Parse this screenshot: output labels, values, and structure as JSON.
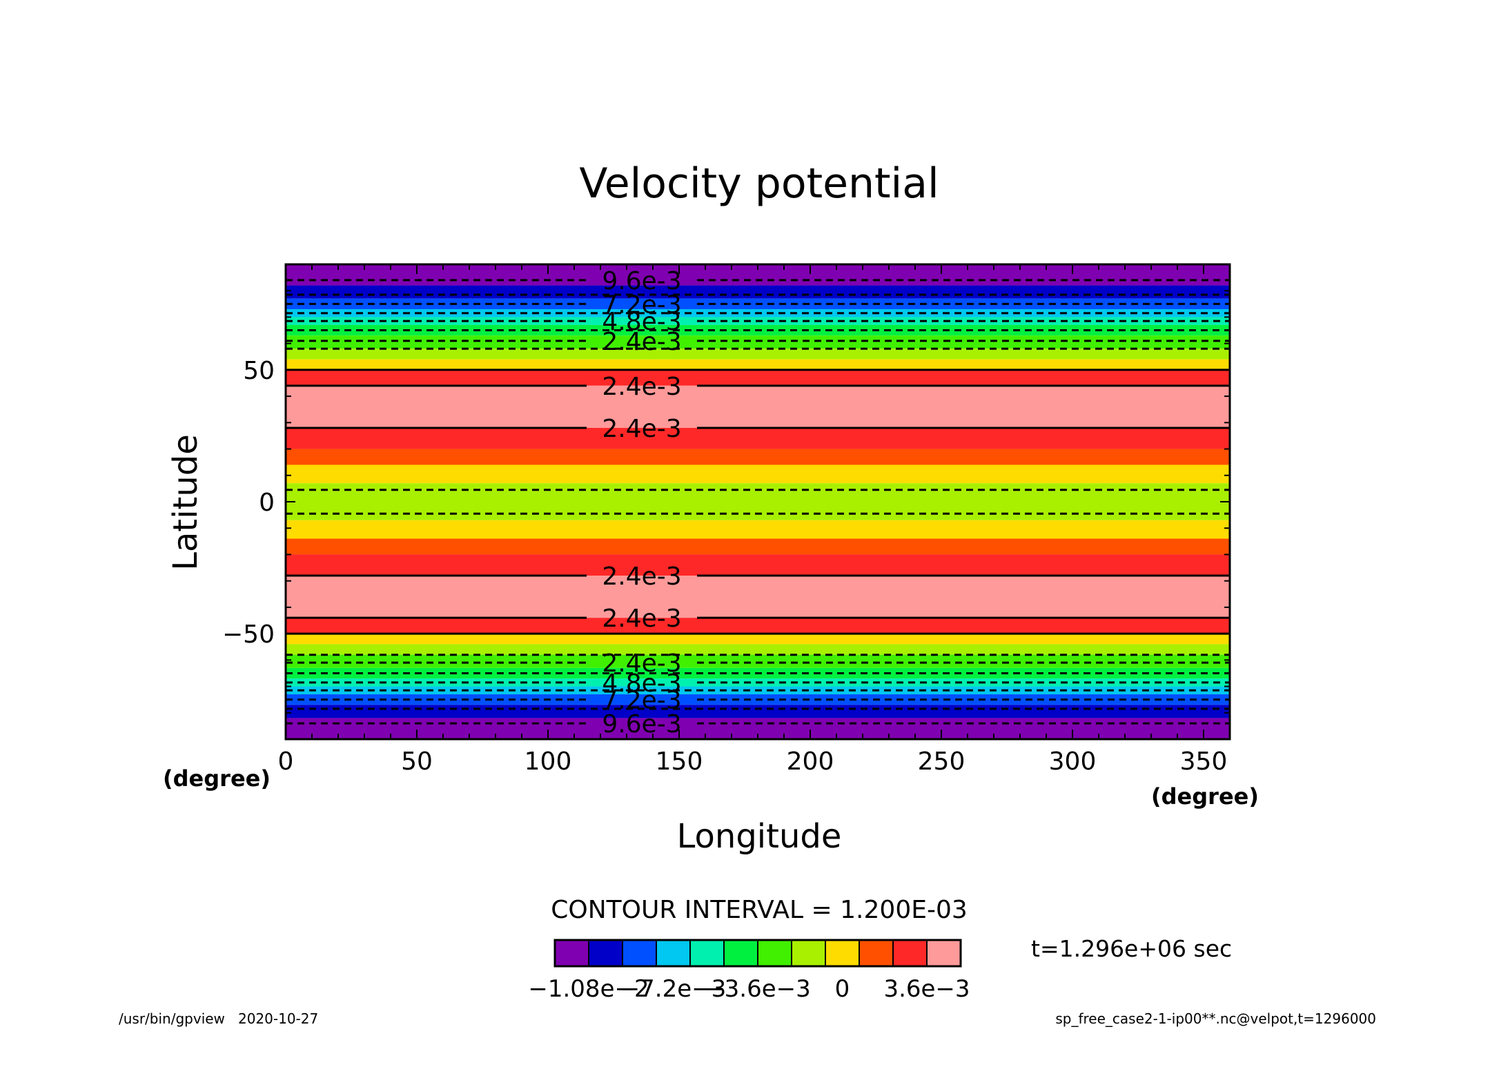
{
  "chart_data": {
    "type": "heatmap",
    "title": "Velocity potential",
    "xlabel": "Longitude",
    "ylabel": "Latitude",
    "xunit": "(degree)",
    "yunit": "(degree)",
    "xlim": [
      0,
      360
    ],
    "ylim": [
      -90,
      90
    ],
    "xticks": [
      0,
      50,
      100,
      150,
      200,
      250,
      300,
      350
    ],
    "yticks": [
      -50,
      0,
      50
    ],
    "contour_interval_text": "CONTOUR INTERVAL = 1.200E-03",
    "time_text": "t=1.296e+06 sec",
    "footer_left": "/usr/bin/gpview   2020-10-27",
    "footer_right": "sp_free_case2-1-ip00**.nc@velpot,t=1296000",
    "colorbar": {
      "colors": [
        "#7f00b0",
        "#0000c8",
        "#0050ff",
        "#00c8f0",
        "#00f0b0",
        "#00f040",
        "#40f000",
        "#a8f000",
        "#ffdc00",
        "#ff5000",
        "#ff2828",
        "#ff9a9a"
      ],
      "tick_labels": [
        "-1.08e-2",
        "-7.2e-3",
        "-3.6e-3",
        "0",
        "3.6e-3"
      ],
      "tick_values": [
        -0.0108,
        -0.0072,
        -0.0036,
        0,
        0.0036
      ]
    },
    "bands": [
      {
        "lat": [
          82,
          90
        ],
        "color": "#7f00b0"
      },
      {
        "lat": [
          77,
          82
        ],
        "color": "#0000c8"
      },
      {
        "lat": [
          73,
          77
        ],
        "color": "#0050ff"
      },
      {
        "lat": [
          70,
          73
        ],
        "color": "#00c8f0"
      },
      {
        "lat": [
          67,
          70
        ],
        "color": "#00f0b0"
      },
      {
        "lat": [
          63,
          67
        ],
        "color": "#00f040"
      },
      {
        "lat": [
          58,
          63
        ],
        "color": "#40f000"
      },
      {
        "lat": [
          54,
          58
        ],
        "color": "#a8f000"
      },
      {
        "lat": [
          50,
          54
        ],
        "color": "#ffdc00"
      },
      {
        "lat": [
          44,
          50
        ],
        "color": "#ff2828"
      },
      {
        "lat": [
          28,
          44
        ],
        "color": "#ff9a9a"
      },
      {
        "lat": [
          20,
          28
        ],
        "color": "#ff2828"
      },
      {
        "lat": [
          14,
          20
        ],
        "color": "#ff5000"
      },
      {
        "lat": [
          7,
          14
        ],
        "color": "#ffdc00"
      },
      {
        "lat": [
          -7,
          7
        ],
        "color": "#a8f000"
      },
      {
        "lat": [
          -14,
          -7
        ],
        "color": "#ffdc00"
      },
      {
        "lat": [
          -20,
          -14
        ],
        "color": "#ff5000"
      },
      {
        "lat": [
          -28,
          -20
        ],
        "color": "#ff2828"
      },
      {
        "lat": [
          -44,
          -28
        ],
        "color": "#ff9a9a"
      },
      {
        "lat": [
          -50,
          -44
        ],
        "color": "#ff2828"
      },
      {
        "lat": [
          -54,
          -50
        ],
        "color": "#ffdc00"
      },
      {
        "lat": [
          -58,
          -54
        ],
        "color": "#a8f000"
      },
      {
        "lat": [
          -63,
          -58
        ],
        "color": "#40f000"
      },
      {
        "lat": [
          -67,
          -63
        ],
        "color": "#00f040"
      },
      {
        "lat": [
          -70,
          -67
        ],
        "color": "#00f0b0"
      },
      {
        "lat": [
          -73,
          -70
        ],
        "color": "#00c8f0"
      },
      {
        "lat": [
          -77,
          -73
        ],
        "color": "#0050ff"
      },
      {
        "lat": [
          -82,
          -77
        ],
        "color": "#0000c8"
      },
      {
        "lat": [
          -90,
          -82
        ],
        "color": "#7f00b0"
      }
    ],
    "contours": [
      {
        "lat": 84,
        "dashed": true,
        "label": "9.6e-3"
      },
      {
        "lat": 78.5,
        "dashed": true,
        "label": ""
      },
      {
        "lat": 75,
        "dashed": true,
        "label": "7.2e-3"
      },
      {
        "lat": 71.5,
        "dashed": true,
        "label": ""
      },
      {
        "lat": 68.5,
        "dashed": true,
        "label": "4.8e-3"
      },
      {
        "lat": 65,
        "dashed": true,
        "label": ""
      },
      {
        "lat": 61,
        "dashed": true,
        "label": "2.4e-3"
      },
      {
        "lat": 58,
        "dashed": true,
        "label": ""
      },
      {
        "lat": 50,
        "dashed": false,
        "label": ""
      },
      {
        "lat": 44,
        "dashed": false,
        "label": "2.4e-3"
      },
      {
        "lat": 28,
        "dashed": false,
        "label": "2.4e-3"
      },
      {
        "lat": 4.5,
        "dashed": true,
        "label": ""
      },
      {
        "lat": -4.5,
        "dashed": true,
        "label": ""
      },
      {
        "lat": -28,
        "dashed": false,
        "label": "2.4e-3"
      },
      {
        "lat": -44,
        "dashed": false,
        "label": "2.4e-3"
      },
      {
        "lat": -50,
        "dashed": false,
        "label": ""
      },
      {
        "lat": -58,
        "dashed": true,
        "label": ""
      },
      {
        "lat": -61,
        "dashed": true,
        "label": "2.4e-3"
      },
      {
        "lat": -65,
        "dashed": true,
        "label": ""
      },
      {
        "lat": -68.5,
        "dashed": true,
        "label": "4.8e-3"
      },
      {
        "lat": -71.5,
        "dashed": true,
        "label": ""
      },
      {
        "lat": -75,
        "dashed": true,
        "label": "7.2e-3"
      },
      {
        "lat": -78.5,
        "dashed": true,
        "label": ""
      },
      {
        "lat": -84,
        "dashed": true,
        "label": "9.6e-3"
      }
    ]
  }
}
